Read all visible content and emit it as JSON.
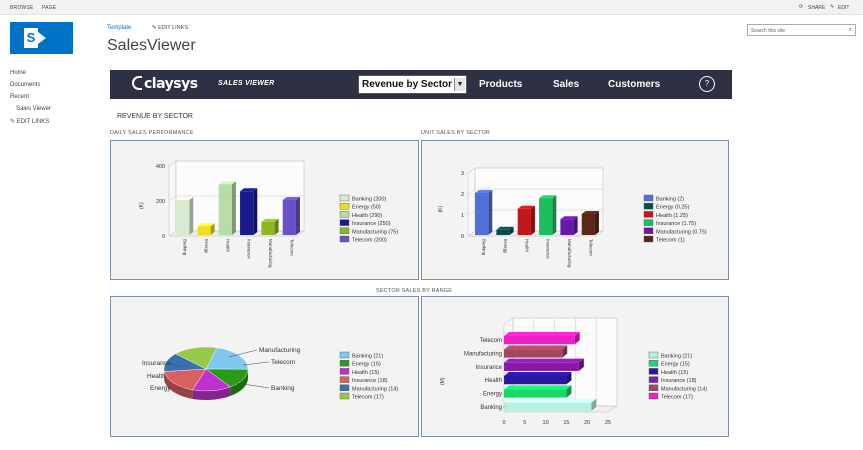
{
  "ribbon": {
    "browse": "BROWSE",
    "page": "PAGE",
    "share": "SHARE",
    "edit": "EDIT"
  },
  "header": {
    "breadcrumb": "Template",
    "edit_links": "EDIT LINKS",
    "site_title": "SalesViewer",
    "search_placeholder": "Search this site"
  },
  "leftnav": {
    "items": [
      "Home",
      "Documents",
      "Recent",
      "Sales Viewer",
      "EDIT LINKS"
    ]
  },
  "banner": {
    "brand": "claysys",
    "app_name": "SALES VIEWER",
    "selected_report": "Revenue by Sector",
    "nav": [
      "Products",
      "Sales",
      "Customers"
    ],
    "help": "?"
  },
  "colors": {
    "banner": "#2d3143",
    "accent": "#0072c6",
    "panel_border": "#7d8ca8"
  },
  "report": {
    "title": "REVENUE BY SECTOR",
    "panel1_title": "DAILY SALES PERFORMANCE",
    "panel2_title": "UNIT SALES BY SECTOR",
    "panel3_title": "SECTOR SALES BY RANGE"
  },
  "chart_data": [
    {
      "type": "bar",
      "categories": [
        "Banking",
        "Energy",
        "Health",
        "Insurance",
        "Manufacturing",
        "Telecom"
      ],
      "values": [
        200,
        50,
        290,
        250,
        75,
        200
      ],
      "colors": [
        "#d9ecd0",
        "#e8e020",
        "#b8dca8",
        "#1a1a8a",
        "#8ab820",
        "#6a50c8"
      ],
      "legend": [
        "Banking (200)",
        "Energy (50)",
        "Health (290)",
        "Insurance (250)",
        "Manufacturing (75)",
        "Telecom (200)"
      ],
      "ylabel": "(K)",
      "yticks": [
        "0",
        "200",
        "400"
      ],
      "ylim": [
        0,
        400
      ]
    },
    {
      "type": "bar",
      "categories": [
        "Banking",
        "Energy",
        "Health",
        "Insurance",
        "Manufacturing",
        "Telecom"
      ],
      "values": [
        2,
        0.25,
        1.25,
        1.75,
        0.75,
        1
      ],
      "colors": [
        "#5070d8",
        "#0a4a4a",
        "#c01818",
        "#18c060",
        "#6a18a8",
        "#5a2818"
      ],
      "legend": [
        "Banking (2)",
        "Energy (0.25)",
        "Health (1.25)",
        "Insurance (1.75)",
        "Manufacturing (0.75)",
        "Telecom (1)"
      ],
      "ylabel": "(K)",
      "yticks": [
        "0",
        "1",
        "2",
        "3"
      ],
      "ylim": [
        0,
        3
      ]
    },
    {
      "type": "pie",
      "categories": [
        "Banking",
        "Energy",
        "Health",
        "Insurance",
        "Manufacturing",
        "Telecom"
      ],
      "values": [
        21,
        15,
        15,
        18,
        14,
        17
      ],
      "colors": [
        "#7fc8f0",
        "#2a9a18",
        "#c030d0",
        "#d86060",
        "#3a70b0",
        "#98c848"
      ],
      "legend": [
        "Banking (21)",
        "Energy (15)",
        "Health (15)",
        "Insurance (18)",
        "Manufacturing (14)",
        "Telecom (17)"
      ],
      "labels": [
        "Manufacturing",
        "Insurance",
        "Telecom",
        "Health",
        "Energy",
        "Banking"
      ]
    },
    {
      "type": "bar",
      "orientation": "horizontal",
      "categories": [
        "Telecom",
        "Manufacturing",
        "Insurance",
        "Health",
        "Energy",
        "Banking"
      ],
      "values": [
        17,
        14,
        18,
        15,
        15,
        21
      ],
      "colors": [
        "#f020c8",
        "#a04860",
        "#8818a8",
        "#2818a0",
        "#18d868",
        "#b8f0e0"
      ],
      "legend": [
        "Banking (21)",
        "Energy (15)",
        "Health (15)",
        "Insurance (18)",
        "Manufacturing (14)",
        "Telecom (17)"
      ],
      "legend_colors": [
        "#b8f0e0",
        "#18d868",
        "#2818a0",
        "#8818a8",
        "#a04860",
        "#f020c8"
      ],
      "ylabel": "(M)",
      "xticks": [
        "0",
        "5",
        "10",
        "15",
        "20",
        "25"
      ],
      "xlim": [
        0,
        25
      ]
    }
  ]
}
